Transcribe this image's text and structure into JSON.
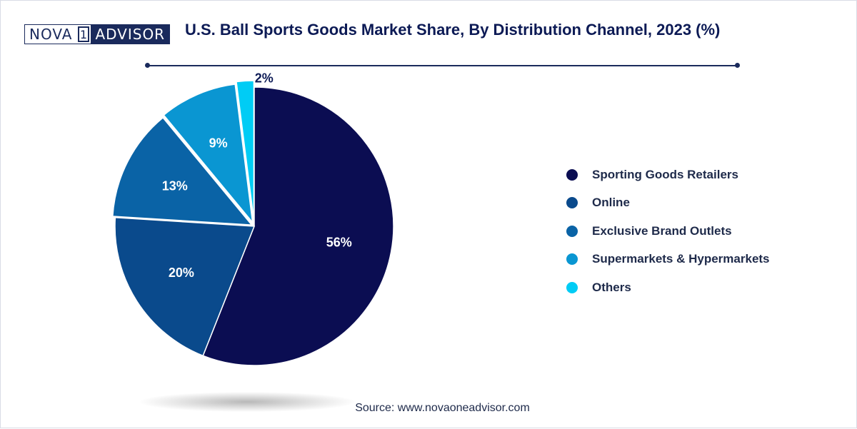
{
  "logo": {
    "part1": "NOVA",
    "part2": "1",
    "part3": "ADVISOR"
  },
  "chart_data": {
    "type": "pie",
    "title": "U.S. Ball Sports Goods Market Share, By Distribution Channel, 2023 (%)",
    "categories": [
      "Sporting Goods Retailers",
      "Online",
      "Exclusive Brand Outlets",
      "Supermarkets & Hypermarkets",
      "Others"
    ],
    "values": [
      56,
      20,
      13,
      9,
      2
    ],
    "value_labels": [
      "56%",
      "20%",
      "13%",
      "9%",
      "2%"
    ],
    "colors": [
      "#0b0d52",
      "#0a4a8c",
      "#0a63a6",
      "#0a96d2",
      "#00ccf5"
    ],
    "legend_position": "right"
  },
  "source": "Source: www.novaoneadvisor.com"
}
